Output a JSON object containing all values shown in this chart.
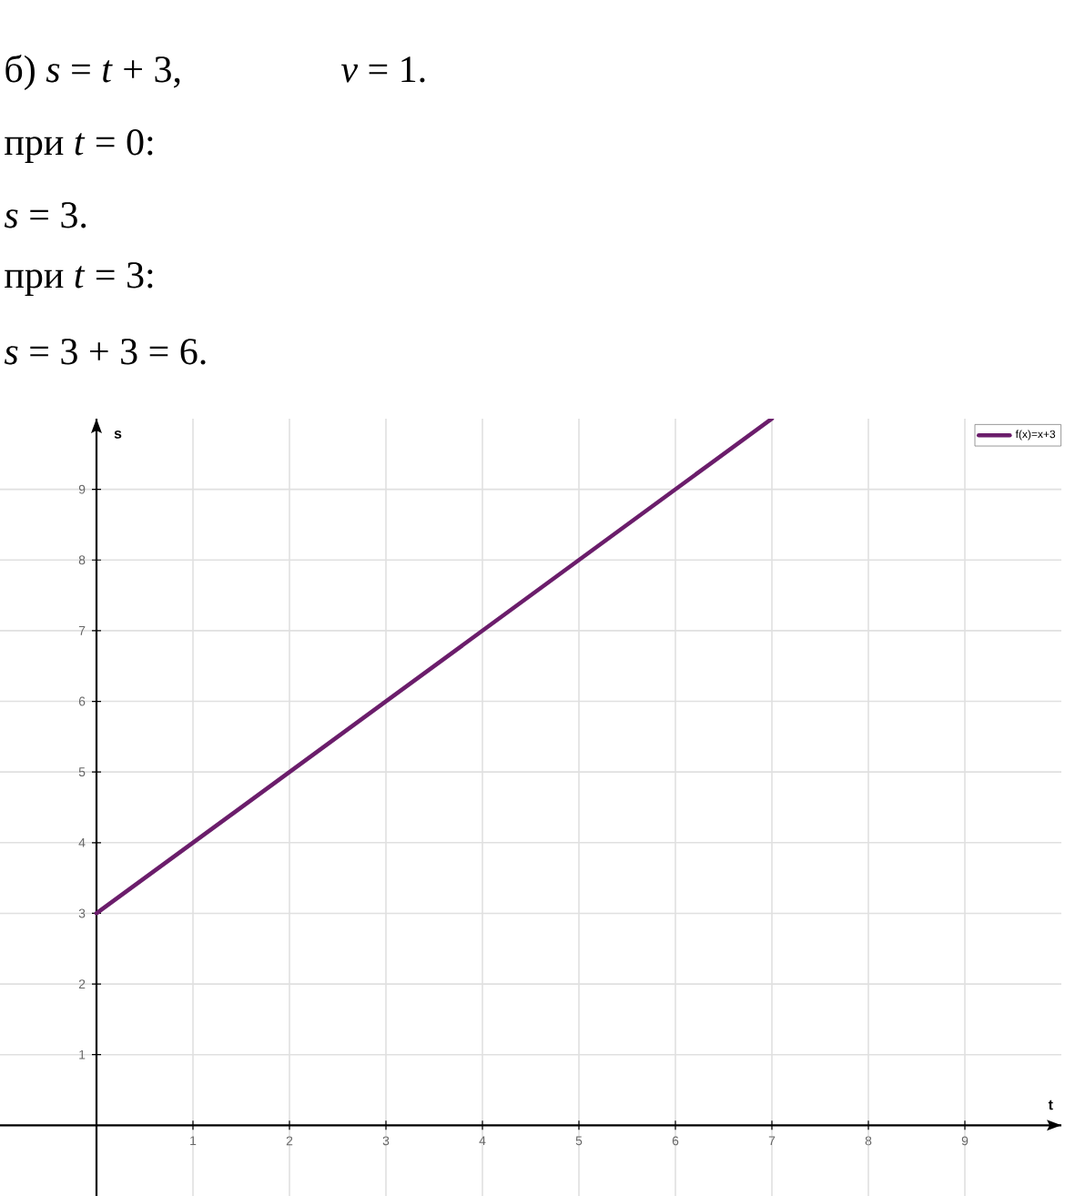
{
  "chart_data": {
    "type": "line",
    "title": "б) *s* = *t* + 3,",
    "subtitle": "*v* = 1.",
    "annotations": [
      "при *t* = 0:",
      "*s* = 3.",
      "при *t* = 3:",
      "*s* = 3 + 3 = 6."
    ],
    "xlabel": "t",
    "ylabel": "s",
    "x": [
      0,
      7
    ],
    "series": [
      {
        "name": "f(x)=x+3",
        "color": "#6b1d6b",
        "values": [
          3,
          10
        ]
      }
    ],
    "xlim": [
      -1,
      10
    ],
    "ylim": [
      -1,
      10
    ],
    "xticks": [
      1,
      2,
      3,
      4,
      5,
      6,
      7,
      8,
      9
    ],
    "yticks": [
      1,
      2,
      3,
      4,
      5,
      6,
      7,
      8,
      9
    ],
    "grid": true,
    "legend": "top right",
    "line_style": "solid"
  }
}
